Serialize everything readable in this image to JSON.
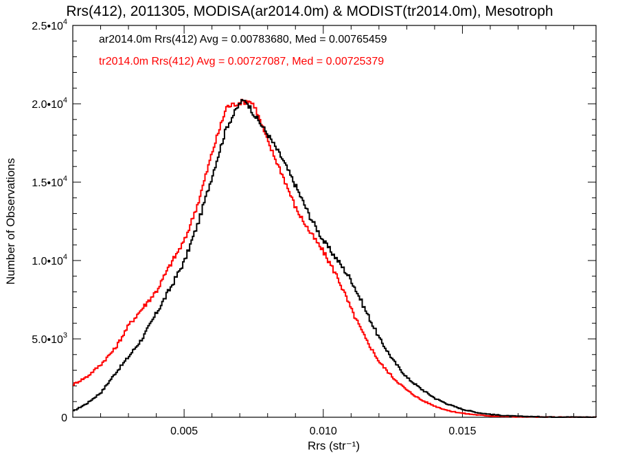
{
  "chart_data": {
    "type": "line",
    "title": "Rrs(412), 2011305, MODISA(ar2014.0m) & MODIST(tr2014.0m), Mesotroph",
    "xlabel": "Rrs (str⁻¹)",
    "ylabel": "Number of Observations",
    "xlim": [
      0.001,
      0.0198
    ],
    "ylim": [
      0,
      25000
    ],
    "x_ticks": [
      0.005,
      0.01,
      0.015
    ],
    "x_tick_labels": [
      "0.005",
      "0.010",
      "0.015"
    ],
    "y_ticks": [
      0,
      5000,
      10000,
      15000,
      20000,
      25000
    ],
    "y_tick_labels": [
      {
        "mant": "0",
        "exp": ""
      },
      {
        "mant": "5.0•1",
        "exp": "0",
        "expsup": "3"
      },
      {
        "mant": "1.0•1",
        "exp": "0",
        "expsup": "4"
      },
      {
        "mant": "1.5•1",
        "exp": "0",
        "expsup": "4"
      },
      {
        "mant": "2.0•1",
        "exp": "0",
        "expsup": "4"
      },
      {
        "mant": "2.5•1",
        "exp": "0",
        "expsup": "4"
      }
    ],
    "grid": false,
    "legend_position": "top-left",
    "series": [
      {
        "name": "ar2014.0m Rrs(412) Avg = 0.00783680, Med = 0.00765459",
        "color": "#000000",
        "points": [
          [
            0.001,
            400
          ],
          [
            0.0015,
            900
          ],
          [
            0.002,
            1600
          ],
          [
            0.0025,
            2800
          ],
          [
            0.003,
            3900
          ],
          [
            0.0035,
            5100
          ],
          [
            0.004,
            6700
          ],
          [
            0.0045,
            8300
          ],
          [
            0.005,
            10000
          ],
          [
            0.0055,
            12500
          ],
          [
            0.006,
            15500
          ],
          [
            0.0065,
            18500
          ],
          [
            0.007,
            20100
          ],
          [
            0.0072,
            20200
          ],
          [
            0.0075,
            19300
          ],
          [
            0.008,
            18000
          ],
          [
            0.0085,
            16500
          ],
          [
            0.009,
            14700
          ],
          [
            0.0095,
            12800
          ],
          [
            0.01,
            11200
          ],
          [
            0.0105,
            10000
          ],
          [
            0.011,
            8700
          ],
          [
            0.0115,
            6800
          ],
          [
            0.012,
            5000
          ],
          [
            0.0125,
            3600
          ],
          [
            0.013,
            2500
          ],
          [
            0.0135,
            1800
          ],
          [
            0.014,
            1200
          ],
          [
            0.0145,
            800
          ],
          [
            0.015,
            500
          ],
          [
            0.0155,
            300
          ],
          [
            0.016,
            180
          ],
          [
            0.0165,
            100
          ],
          [
            0.017,
            60
          ],
          [
            0.018,
            20
          ],
          [
            0.0198,
            5
          ]
        ]
      },
      {
        "name": "tr2014.0m Rrs(412) Avg = 0.00727087, Med = 0.00725379",
        "color": "#ff0000",
        "points": [
          [
            0.001,
            2100
          ],
          [
            0.0015,
            2600
          ],
          [
            0.002,
            3400
          ],
          [
            0.0025,
            4400
          ],
          [
            0.003,
            5900
          ],
          [
            0.0035,
            7000
          ],
          [
            0.004,
            8100
          ],
          [
            0.0045,
            9800
          ],
          [
            0.005,
            11300
          ],
          [
            0.0055,
            13800
          ],
          [
            0.006,
            17000
          ],
          [
            0.0065,
            19800
          ],
          [
            0.007,
            20100
          ],
          [
            0.0073,
            20200
          ],
          [
            0.0075,
            19900
          ],
          [
            0.008,
            17500
          ],
          [
            0.0085,
            15500
          ],
          [
            0.009,
            13300
          ],
          [
            0.0095,
            11800
          ],
          [
            0.01,
            10500
          ],
          [
            0.0105,
            8900
          ],
          [
            0.011,
            6800
          ],
          [
            0.0115,
            5000
          ],
          [
            0.012,
            3500
          ],
          [
            0.0125,
            2500
          ],
          [
            0.013,
            1700
          ],
          [
            0.0135,
            1100
          ],
          [
            0.014,
            700
          ],
          [
            0.0145,
            400
          ],
          [
            0.015,
            250
          ],
          [
            0.0155,
            150
          ],
          [
            0.016,
            80
          ],
          [
            0.017,
            30
          ],
          [
            0.018,
            10
          ],
          [
            0.0198,
            2
          ]
        ]
      }
    ]
  }
}
